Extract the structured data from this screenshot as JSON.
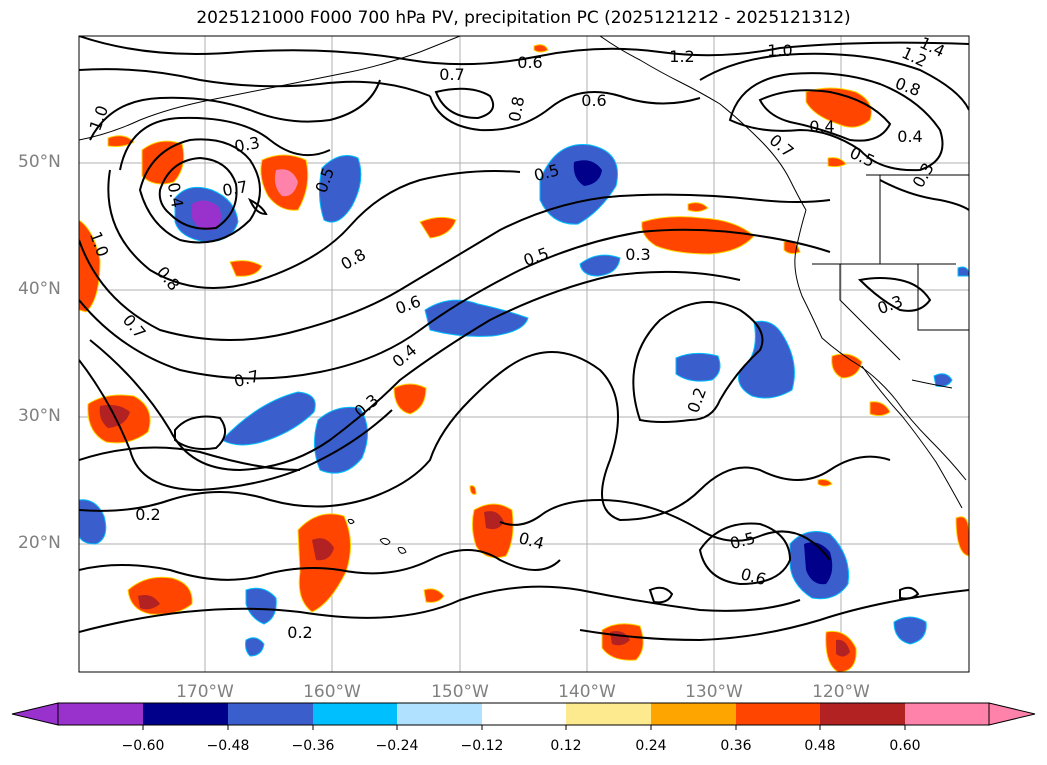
{
  "title": "2025121000 F000 700 hPa PV, precipitation PC (2025121212 - 2025121312)",
  "lat_labels": [
    "50°N",
    "40°N",
    "30°N",
    "20°N"
  ],
  "lon_labels": [
    "170°W",
    "160°W",
    "150°W",
    "140°W",
    "130°W",
    "120°W"
  ],
  "colorbar": {
    "colors": [
      "#9932cc",
      "#00008b",
      "#3a5fcd",
      "#00bfff",
      "#b0e2ff",
      "#ffffff",
      "#fde98e",
      "#ffa500",
      "#ff4500",
      "#b22222",
      "#ff82ab"
    ],
    "ticks": [
      "−0.60",
      "−0.48",
      "−0.36",
      "−0.24",
      "−0.12",
      "0.12",
      "0.24",
      "0.36",
      "0.48",
      "0.60"
    ]
  },
  "contour_labels": [
    "1.2",
    "1.0",
    "1.2",
    "1.4",
    "0.6",
    "0.7",
    "0.8",
    "0.6",
    "0.8",
    "0.4",
    "0.5",
    "0.4",
    "0.3",
    "0.7",
    "0.5",
    "0.5",
    "1.0",
    "0.4",
    "0.3",
    "0.8",
    "1.0",
    "0.8",
    "0.5",
    "0.3",
    "0.6",
    "0.7",
    "0.4",
    "0.3",
    "0.3",
    "0.7",
    "0.2",
    "0.2",
    "0.4",
    "0.5",
    "0.6",
    "0.2",
    "0.7"
  ]
}
